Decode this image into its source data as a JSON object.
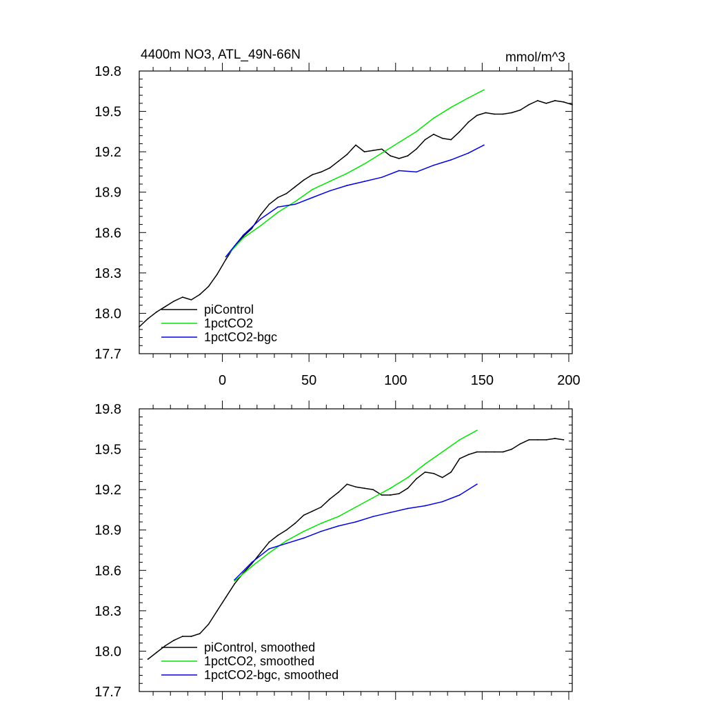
{
  "chart_data": [
    {
      "type": "line",
      "title": "4400m NO3, ATL_49N-66N",
      "units": "mmol/m^3",
      "xlim": [
        -48,
        202
      ],
      "ylim": [
        17.7,
        19.8
      ],
      "xticks": [
        0,
        50,
        100,
        150,
        200
      ],
      "yticks": [
        17.7,
        18.0,
        18.3,
        18.6,
        18.9,
        19.2,
        19.5,
        19.8
      ],
      "yticklabels": [
        "17.7",
        "18.0",
        "18.3",
        "18.6",
        "18.9",
        "19.2",
        "19.5",
        "19.8"
      ],
      "xticklabels": [
        "0",
        "50",
        "100",
        "150",
        "200"
      ],
      "show_xticklabels": true,
      "series": [
        {
          "name": "piControl",
          "color": "#000000",
          "x": [
            -48,
            -43,
            -38,
            -33,
            -28,
            -23,
            -18,
            -13,
            -8,
            -3,
            2,
            7,
            12,
            17,
            22,
            27,
            32,
            37,
            42,
            47,
            52,
            57,
            62,
            67,
            72,
            77,
            82,
            87,
            92,
            97,
            102,
            107,
            112,
            117,
            122,
            127,
            132,
            137,
            142,
            147,
            152,
            157,
            162,
            167,
            172,
            177,
            182,
            187,
            192,
            197,
            202
          ],
          "y": [
            17.9,
            17.96,
            18.01,
            18.05,
            18.09,
            18.12,
            18.1,
            18.14,
            18.2,
            18.29,
            18.4,
            18.5,
            18.57,
            18.63,
            18.73,
            18.81,
            18.86,
            18.89,
            18.94,
            18.99,
            19.03,
            19.05,
            19.08,
            19.13,
            19.18,
            19.25,
            19.2,
            19.21,
            19.22,
            19.17,
            19.15,
            19.17,
            19.22,
            19.29,
            19.33,
            19.3,
            19.29,
            19.35,
            19.42,
            19.47,
            19.49,
            19.48,
            19.48,
            19.49,
            19.51,
            19.55,
            19.58,
            19.56,
            19.58,
            19.57,
            19.55
          ]
        },
        {
          "name": "1pctCO2",
          "color": "#00e600",
          "x": [
            2,
            12,
            22,
            32,
            42,
            52,
            62,
            72,
            82,
            92,
            102,
            112,
            122,
            132,
            142,
            151
          ],
          "y": [
            18.42,
            18.56,
            18.65,
            18.75,
            18.83,
            18.92,
            18.98,
            19.04,
            19.11,
            19.19,
            19.27,
            19.35,
            19.45,
            19.53,
            19.6,
            19.66
          ]
        },
        {
          "name": "1pctCO2-bgc",
          "color": "#0000e6",
          "x": [
            2,
            12,
            22,
            32,
            42,
            52,
            62,
            72,
            82,
            92,
            102,
            112,
            122,
            132,
            142,
            151
          ],
          "y": [
            18.42,
            18.58,
            18.7,
            18.79,
            18.81,
            18.86,
            18.91,
            18.95,
            18.98,
            19.01,
            19.06,
            19.05,
            19.1,
            19.14,
            19.19,
            19.25
          ]
        }
      ],
      "legend": {
        "placement": "bottom-left",
        "entries": [
          "piControl",
          "1pctCO2",
          "1pctCO2-bgc"
        ]
      }
    },
    {
      "type": "line",
      "title": "",
      "xlim": [
        -48,
        202
      ],
      "ylim": [
        17.7,
        19.8
      ],
      "xticks": [
        0,
        50,
        100,
        150,
        200
      ],
      "yticks": [
        17.7,
        18.0,
        18.3,
        18.6,
        18.9,
        19.2,
        19.5,
        19.8
      ],
      "yticklabels": [
        "17.7",
        "18.0",
        "18.3",
        "18.6",
        "18.9",
        "19.2",
        "19.5",
        "19.8"
      ],
      "show_xticklabels": false,
      "series": [
        {
          "name": "piControl, smoothed",
          "color": "#000000",
          "x": [
            -43,
            -38,
            -33,
            -28,
            -23,
            -18,
            -13,
            -8,
            -3,
            2,
            7,
            12,
            17,
            22,
            27,
            32,
            37,
            42,
            47,
            52,
            57,
            62,
            67,
            72,
            77,
            82,
            87,
            92,
            97,
            102,
            107,
            112,
            117,
            122,
            127,
            132,
            137,
            142,
            147,
            152,
            157,
            162,
            167,
            172,
            177,
            182,
            187,
            192,
            197
          ],
          "y": [
            17.94,
            17.99,
            18.04,
            18.08,
            18.11,
            18.11,
            18.13,
            18.2,
            18.3,
            18.4,
            18.5,
            18.58,
            18.65,
            18.73,
            18.81,
            18.86,
            18.9,
            18.95,
            19.01,
            19.04,
            19.07,
            19.13,
            19.18,
            19.24,
            19.22,
            19.21,
            19.2,
            19.16,
            19.16,
            19.17,
            19.21,
            19.28,
            19.33,
            19.32,
            19.29,
            19.33,
            19.43,
            19.46,
            19.48,
            19.48,
            19.48,
            19.48,
            19.5,
            19.54,
            19.57,
            19.57,
            19.57,
            19.58,
            19.57
          ]
        },
        {
          "name": "1pctCO2, smoothed",
          "color": "#00e600",
          "x": [
            7,
            17,
            27,
            37,
            47,
            57,
            67,
            77,
            87,
            97,
            107,
            117,
            127,
            137,
            147
          ],
          "y": [
            18.52,
            18.63,
            18.73,
            18.82,
            18.89,
            18.95,
            19.0,
            19.07,
            19.14,
            19.21,
            19.29,
            19.39,
            19.48,
            19.57,
            19.64
          ]
        },
        {
          "name": "1pctCO2-bgc, smoothed",
          "color": "#0000e6",
          "x": [
            7,
            17,
            27,
            37,
            47,
            57,
            67,
            77,
            87,
            97,
            107,
            117,
            127,
            137,
            147
          ],
          "y": [
            18.53,
            18.66,
            18.76,
            18.8,
            18.84,
            18.89,
            18.93,
            18.96,
            19.0,
            19.03,
            19.06,
            19.08,
            19.11,
            19.16,
            19.24
          ]
        }
      ],
      "legend": {
        "placement": "bottom-left",
        "entries": [
          "piControl, smoothed",
          "1pctCO2, smoothed",
          "1pctCO2-bgc, smoothed"
        ]
      }
    }
  ]
}
